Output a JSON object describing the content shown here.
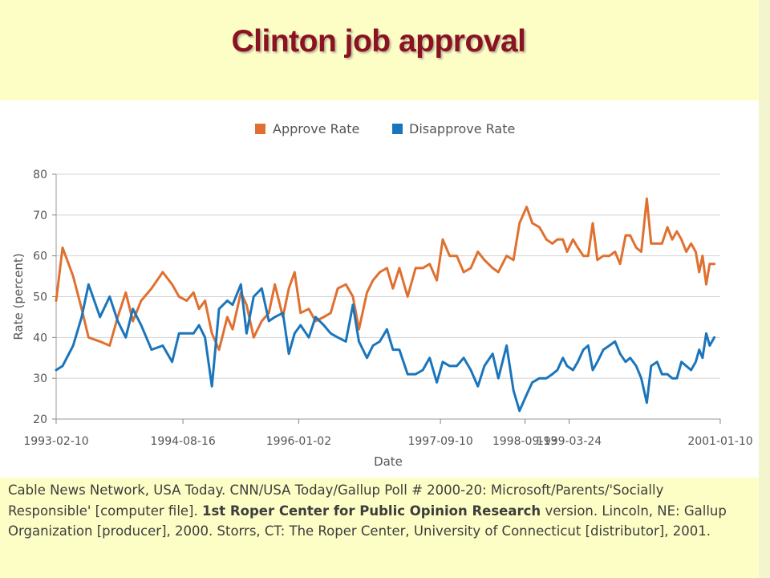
{
  "slide": {
    "title": "Clinton job approval",
    "caption": {
      "part1": "Cable News Network, USA Today. CNN/USA Today/Gallup Poll # 2000-20: Microsoft/Parents/'Socially Responsible' [computer file].",
      "bold": "1st Roper Center for Public Opinion Research",
      "part2": "version. Lincoln, NE: Gallup Organization [producer], 2000. Storrs, CT: The Roper Center, University of Connecticut [distributor], 2001."
    }
  },
  "colors": {
    "approve": "#e07030",
    "disapprove": "#1a75bc",
    "title": "#8b1220",
    "background": "#fdfdc6"
  },
  "chart_data": {
    "type": "line",
    "title": "",
    "xlabel": "Date",
    "ylabel": "Rate (percent)",
    "ylim": [
      20,
      80
    ],
    "yticks": [
      20,
      30,
      40,
      50,
      60,
      70,
      80
    ],
    "xlim": [
      "1993-02-10",
      "2001-01-10"
    ],
    "xticks": [
      "1993-02-10",
      "1994-08-16",
      "1996-01-02",
      "1997-09-10",
      "1998-09-13",
      "1999-03-24",
      "2001-01-10"
    ],
    "grid": "horizontal",
    "legend": "top-center",
    "series": [
      {
        "name": "Approve Rate",
        "color": "#e07030",
        "points": [
          [
            "1993-02-10",
            49
          ],
          [
            "1993-03-10",
            62
          ],
          [
            "1993-04-25",
            55
          ],
          [
            "1993-06-01",
            47
          ],
          [
            "1993-07-01",
            40
          ],
          [
            "1993-08-20",
            39
          ],
          [
            "1993-10-01",
            38
          ],
          [
            "1993-11-05",
            45
          ],
          [
            "1993-12-10",
            51
          ],
          [
            "1994-01-10",
            44
          ],
          [
            "1994-02-15",
            49
          ],
          [
            "1994-04-01",
            52
          ],
          [
            "1994-05-20",
            56
          ],
          [
            "1994-06-30",
            53
          ],
          [
            "1994-07-30",
            50
          ],
          [
            "1994-09-01",
            49
          ],
          [
            "1994-10-01",
            51
          ],
          [
            "1994-10-25",
            47
          ],
          [
            "1994-11-20",
            49
          ],
          [
            "1994-12-20",
            41
          ],
          [
            "1995-01-20",
            37
          ],
          [
            "1995-02-25",
            45
          ],
          [
            "1995-03-20",
            42
          ],
          [
            "1995-04-25",
            51
          ],
          [
            "1995-05-20",
            48
          ],
          [
            "1995-06-20",
            40
          ],
          [
            "1995-07-25",
            44
          ],
          [
            "1995-08-25",
            46
          ],
          [
            "1995-09-20",
            53
          ],
          [
            "1995-10-25",
            45
          ],
          [
            "1995-11-20",
            52
          ],
          [
            "1995-12-15",
            56
          ],
          [
            "1996-01-10",
            46
          ],
          [
            "1996-02-15",
            47
          ],
          [
            "1996-03-15",
            44
          ],
          [
            "1996-04-20",
            45
          ],
          [
            "1996-05-20",
            46
          ],
          [
            "1996-06-20",
            52
          ],
          [
            "1996-07-25",
            53
          ],
          [
            "1996-08-25",
            50
          ],
          [
            "1996-09-20",
            42
          ],
          [
            "1996-10-25",
            51
          ],
          [
            "1996-11-20",
            54
          ],
          [
            "1996-12-20",
            56
          ],
          [
            "1997-01-20",
            57
          ],
          [
            "1997-02-15",
            52
          ],
          [
            "1997-03-15",
            57
          ],
          [
            "1997-04-20",
            50
          ],
          [
            "1997-05-25",
            57
          ],
          [
            "1997-06-25",
            57
          ],
          [
            "1997-07-25",
            58
          ],
          [
            "1997-08-25",
            54
          ],
          [
            "1997-09-20",
            64
          ],
          [
            "1997-10-20",
            60
          ],
          [
            "1997-11-20",
            60
          ],
          [
            "1997-12-20",
            56
          ],
          [
            "1998-01-20",
            57
          ],
          [
            "1998-02-20",
            61
          ],
          [
            "1998-03-20",
            59
          ],
          [
            "1998-04-25",
            57
          ],
          [
            "1998-05-20",
            56
          ],
          [
            "1998-06-25",
            60
          ],
          [
            "1998-07-25",
            59
          ],
          [
            "1998-08-20",
            68
          ],
          [
            "1998-09-20",
            72
          ],
          [
            "1998-10-15",
            68
          ],
          [
            "1998-11-15",
            67
          ],
          [
            "1998-12-15",
            64
          ],
          [
            "1999-01-10",
            63
          ],
          [
            "1999-02-01",
            64
          ],
          [
            "1999-02-25",
            64
          ],
          [
            "1999-03-15",
            61
          ],
          [
            "1999-04-10",
            64
          ],
          [
            "1999-05-01",
            62
          ],
          [
            "1999-05-25",
            60
          ],
          [
            "1999-06-15",
            60
          ],
          [
            "1999-07-05",
            68
          ],
          [
            "1999-07-25",
            59
          ],
          [
            "1999-08-20",
            60
          ],
          [
            "1999-09-15",
            60
          ],
          [
            "1999-10-10",
            61
          ],
          [
            "1999-11-01",
            58
          ],
          [
            "1999-11-25",
            65
          ],
          [
            "1999-12-15",
            65
          ],
          [
            "2000-01-10",
            62
          ],
          [
            "2000-02-01",
            61
          ],
          [
            "2000-02-25",
            74
          ],
          [
            "2000-03-15",
            63
          ],
          [
            "2000-04-10",
            63
          ],
          [
            "2000-05-01",
            63
          ],
          [
            "2000-05-25",
            67
          ],
          [
            "2000-06-15",
            64
          ],
          [
            "2000-07-05",
            66
          ],
          [
            "2000-07-25",
            64
          ],
          [
            "2000-08-15",
            61
          ],
          [
            "2000-09-05",
            63
          ],
          [
            "2000-09-25",
            61
          ],
          [
            "2000-10-10",
            56
          ],
          [
            "2000-10-25",
            60
          ],
          [
            "2000-11-10",
            53
          ],
          [
            "2000-11-25",
            58
          ],
          [
            "2000-12-15",
            58
          ]
        ]
      },
      {
        "name": "Disapprove Rate",
        "color": "#1a75bc",
        "points": [
          [
            "1993-02-10",
            32
          ],
          [
            "1993-03-10",
            33
          ],
          [
            "1993-04-25",
            38
          ],
          [
            "1993-06-01",
            45
          ],
          [
            "1993-07-01",
            53
          ],
          [
            "1993-08-20",
            45
          ],
          [
            "1993-10-01",
            50
          ],
          [
            "1993-11-05",
            44
          ],
          [
            "1993-12-10",
            40
          ],
          [
            "1994-01-10",
            47
          ],
          [
            "1994-02-15",
            43
          ],
          [
            "1994-04-01",
            37
          ],
          [
            "1994-05-20",
            38
          ],
          [
            "1994-06-30",
            34
          ],
          [
            "1994-07-30",
            41
          ],
          [
            "1994-09-01",
            41
          ],
          [
            "1994-10-01",
            41
          ],
          [
            "1994-10-25",
            43
          ],
          [
            "1994-11-20",
            40
          ],
          [
            "1994-12-20",
            28
          ],
          [
            "1995-01-20",
            47
          ],
          [
            "1995-02-25",
            49
          ],
          [
            "1995-03-20",
            48
          ],
          [
            "1995-04-25",
            53
          ],
          [
            "1995-05-20",
            41
          ],
          [
            "1995-06-20",
            50
          ],
          [
            "1995-07-25",
            52
          ],
          [
            "1995-08-25",
            44
          ],
          [
            "1995-09-20",
            45
          ],
          [
            "1995-10-25",
            46
          ],
          [
            "1995-11-20",
            36
          ],
          [
            "1995-12-15",
            41
          ],
          [
            "1996-01-10",
            43
          ],
          [
            "1996-02-15",
            40
          ],
          [
            "1996-03-15",
            45
          ],
          [
            "1996-04-20",
            43
          ],
          [
            "1996-05-20",
            41
          ],
          [
            "1996-06-20",
            40
          ],
          [
            "1996-07-25",
            39
          ],
          [
            "1996-08-25",
            48
          ],
          [
            "1996-09-20",
            39
          ],
          [
            "1996-10-25",
            35
          ],
          [
            "1996-11-20",
            38
          ],
          [
            "1996-12-20",
            39
          ],
          [
            "1997-01-20",
            42
          ],
          [
            "1997-02-15",
            37
          ],
          [
            "1997-03-15",
            37
          ],
          [
            "1997-04-20",
            31
          ],
          [
            "1997-05-25",
            31
          ],
          [
            "1997-06-25",
            32
          ],
          [
            "1997-07-25",
            35
          ],
          [
            "1997-08-25",
            29
          ],
          [
            "1997-09-20",
            34
          ],
          [
            "1997-10-20",
            33
          ],
          [
            "1997-11-20",
            33
          ],
          [
            "1997-12-20",
            35
          ],
          [
            "1998-01-20",
            32
          ],
          [
            "1998-02-20",
            28
          ],
          [
            "1998-03-20",
            33
          ],
          [
            "1998-04-25",
            36
          ],
          [
            "1998-05-20",
            30
          ],
          [
            "1998-06-25",
            38
          ],
          [
            "1998-07-25",
            27
          ],
          [
            "1998-08-20",
            22
          ],
          [
            "1998-09-20",
            26
          ],
          [
            "1998-10-15",
            29
          ],
          [
            "1998-11-15",
            30
          ],
          [
            "1998-12-15",
            30
          ],
          [
            "1999-01-10",
            31
          ],
          [
            "1999-02-01",
            32
          ],
          [
            "1999-02-25",
            35
          ],
          [
            "1999-03-15",
            33
          ],
          [
            "1999-04-10",
            32
          ],
          [
            "1999-05-01",
            34
          ],
          [
            "1999-05-25",
            37
          ],
          [
            "1999-06-15",
            38
          ],
          [
            "1999-07-05",
            32
          ],
          [
            "1999-07-25",
            34
          ],
          [
            "1999-08-20",
            37
          ],
          [
            "1999-09-15",
            38
          ],
          [
            "1999-10-10",
            39
          ],
          [
            "1999-11-01",
            36
          ],
          [
            "1999-11-25",
            34
          ],
          [
            "1999-12-15",
            35
          ],
          [
            "2000-01-10",
            33
          ],
          [
            "2000-02-01",
            30
          ],
          [
            "2000-02-25",
            24
          ],
          [
            "2000-03-15",
            33
          ],
          [
            "2000-04-10",
            34
          ],
          [
            "2000-05-01",
            31
          ],
          [
            "2000-05-25",
            31
          ],
          [
            "2000-06-15",
            30
          ],
          [
            "2000-07-05",
            30
          ],
          [
            "2000-07-25",
            34
          ],
          [
            "2000-08-15",
            33
          ],
          [
            "2000-09-05",
            32
          ],
          [
            "2000-09-25",
            34
          ],
          [
            "2000-10-10",
            37
          ],
          [
            "2000-10-25",
            35
          ],
          [
            "2000-11-10",
            41
          ],
          [
            "2000-11-25",
            38
          ],
          [
            "2000-12-15",
            40
          ]
        ]
      }
    ]
  }
}
